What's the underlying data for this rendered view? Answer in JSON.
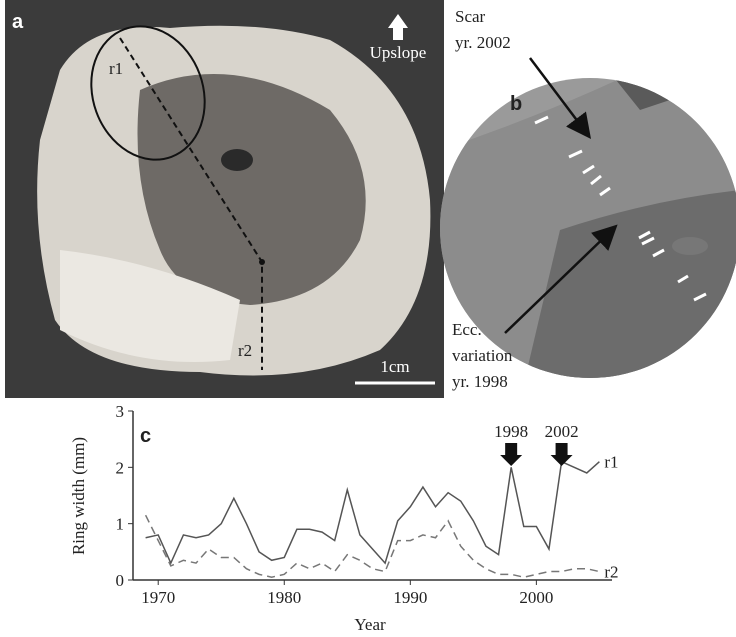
{
  "panel_a": {
    "label": "a",
    "radius_labels": [
      "r1",
      "r2"
    ],
    "direction": "Upslope",
    "scale_bar": "1cm"
  },
  "panel_b": {
    "label": "b",
    "scar": [
      "Scar",
      "yr. 2002"
    ],
    "eccentricity": [
      "Ecc.",
      "variation",
      "yr. 1998"
    ]
  },
  "chart_data": {
    "type": "line",
    "label": "c",
    "x_label": "Year",
    "y_label": "Ring width (mm)",
    "x": [
      1969,
      1970,
      1971,
      1972,
      1973,
      1974,
      1975,
      1976,
      1977,
      1978,
      1979,
      1980,
      1981,
      1982,
      1983,
      1984,
      1985,
      1986,
      1987,
      1988,
      1989,
      1990,
      1991,
      1992,
      1993,
      1994,
      1995,
      1996,
      1997,
      1998,
      1999,
      2000,
      2001,
      2002,
      2003,
      2004,
      2005
    ],
    "series": [
      {
        "name": "r1",
        "color": "#555555",
        "dash": false,
        "values": [
          0.75,
          0.8,
          0.3,
          0.8,
          0.75,
          0.8,
          1.0,
          1.45,
          1.0,
          0.5,
          0.35,
          0.4,
          0.9,
          0.9,
          0.85,
          0.7,
          1.6,
          0.8,
          0.55,
          0.3,
          1.05,
          1.3,
          1.65,
          1.3,
          1.55,
          1.4,
          1.05,
          0.6,
          0.45,
          2.0,
          0.95,
          0.95,
          0.55,
          2.1,
          2.0,
          1.9,
          2.1
        ]
      },
      {
        "name": "r2",
        "color": "#777777",
        "dash": true,
        "values": [
          1.15,
          0.7,
          0.25,
          0.35,
          0.3,
          0.55,
          0.4,
          0.4,
          0.2,
          0.1,
          0.05,
          0.1,
          0.3,
          0.2,
          0.3,
          0.15,
          0.45,
          0.35,
          0.2,
          0.15,
          0.7,
          0.7,
          0.8,
          0.75,
          1.05,
          0.6,
          0.35,
          0.2,
          0.1,
          0.1,
          0.05,
          0.1,
          0.15,
          0.15,
          0.2,
          0.2,
          0.15
        ]
      }
    ],
    "annotations": [
      {
        "label": "1998",
        "x": 1998
      },
      {
        "label": "2002",
        "x": 2002
      }
    ],
    "xlim": [
      1968,
      2006
    ],
    "xticks": [
      1970,
      1980,
      1990,
      2000
    ],
    "ylim": [
      0,
      3
    ],
    "yticks": [
      0,
      1,
      2,
      3
    ]
  }
}
